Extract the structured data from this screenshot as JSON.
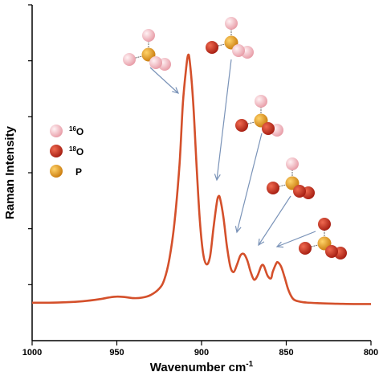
{
  "chart_data": {
    "type": "line",
    "xlabel": "Wavenumber cm",
    "xlabel_sup": "-1",
    "ylabel": "Raman Intensity",
    "xlim": [
      1000,
      800
    ],
    "x_reversed": true,
    "x_ticks": [
      "1000",
      "950",
      "900",
      "850",
      "800"
    ],
    "y_ticks_count": 7,
    "y_ticks_labeled": false,
    "grid": false,
    "series": [
      {
        "color": "#d4502b",
        "points": [
          [
            1000,
            0.01
          ],
          [
            990,
            0.01
          ],
          [
            980,
            0.012
          ],
          [
            970,
            0.016
          ],
          [
            960,
            0.024
          ],
          [
            955,
            0.03
          ],
          [
            950,
            0.034
          ],
          [
            945,
            0.032
          ],
          [
            940,
            0.028
          ],
          [
            935,
            0.03
          ],
          [
            930,
            0.04
          ],
          [
            925,
            0.065
          ],
          [
            922,
            0.1
          ],
          [
            919,
            0.18
          ],
          [
            916,
            0.32
          ],
          [
            913,
            0.55
          ],
          [
            911,
            0.79
          ],
          [
            909,
            0.93
          ],
          [
            908,
            0.975
          ],
          [
            907,
            0.955
          ],
          [
            905,
            0.8
          ],
          [
            903,
            0.55
          ],
          [
            901,
            0.33
          ],
          [
            899,
            0.2
          ],
          [
            897,
            0.16
          ],
          [
            895,
            0.19
          ],
          [
            893,
            0.3
          ],
          [
            891,
            0.4
          ],
          [
            890,
            0.425
          ],
          [
            889,
            0.415
          ],
          [
            887,
            0.34
          ],
          [
            885,
            0.23
          ],
          [
            883,
            0.15
          ],
          [
            881,
            0.13
          ],
          [
            879,
            0.16
          ],
          [
            877,
            0.195
          ],
          [
            875,
            0.2
          ],
          [
            873,
            0.175
          ],
          [
            871,
            0.13
          ],
          [
            869,
            0.1
          ],
          [
            867,
            0.115
          ],
          [
            865,
            0.15
          ],
          [
            864,
            0.158
          ],
          [
            863,
            0.15
          ],
          [
            861,
            0.115
          ],
          [
            859,
            0.105
          ],
          [
            858,
            0.13
          ],
          [
            856,
            0.162
          ],
          [
            855,
            0.168
          ],
          [
            853,
            0.15
          ],
          [
            851,
            0.11
          ],
          [
            849,
            0.065
          ],
          [
            847,
            0.035
          ],
          [
            845,
            0.02
          ],
          [
            840,
            0.012
          ],
          [
            830,
            0.008
          ],
          [
            820,
            0.006
          ],
          [
            810,
            0.005
          ],
          [
            800,
            0.005
          ]
        ]
      }
    ]
  },
  "legend": {
    "entries": [
      {
        "mass": "16",
        "symbol": "O",
        "color": "#f7c2c9"
      },
      {
        "mass": "18",
        "symbol": "O",
        "color": "#c93020"
      },
      {
        "mass": "",
        "symbol": "P",
        "color": "#e69a1f"
      }
    ]
  },
  "molecules": [
    {
      "peak_x": 908,
      "pattern": [
        "16O",
        "16O",
        "16O",
        "16O"
      ]
    },
    {
      "peak_x": 890,
      "pattern": [
        "16O",
        "18O",
        "16O",
        "16O"
      ]
    },
    {
      "peak_x": 875,
      "pattern": [
        "16O",
        "18O",
        "16O",
        "18O"
      ]
    },
    {
      "peak_x": 864,
      "pattern": [
        "16O",
        "18O",
        "18O",
        "18O"
      ]
    },
    {
      "peak_x": 855,
      "pattern": [
        "18O",
        "18O",
        "18O",
        "18O"
      ]
    }
  ]
}
